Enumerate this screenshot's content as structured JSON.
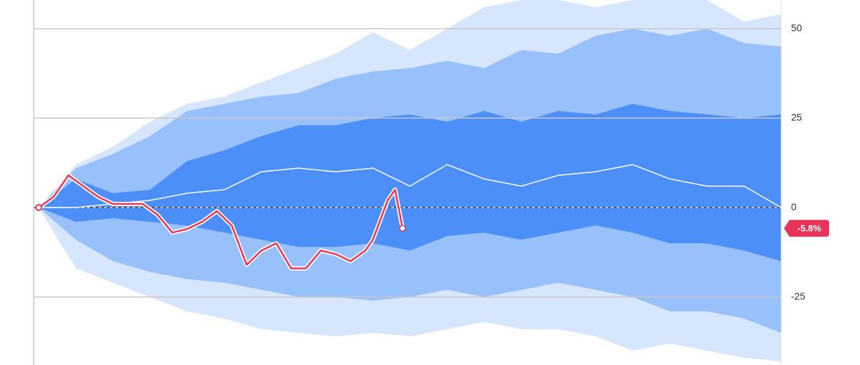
{
  "chart_data": {
    "type": "fan",
    "x": [
      0,
      10,
      20,
      30,
      40,
      50,
      60,
      70,
      80,
      90,
      100,
      110,
      120,
      130,
      140,
      150,
      160,
      170,
      180,
      190,
      200
    ],
    "xlim": [
      0,
      200
    ],
    "ylim": [
      -44,
      58
    ],
    "yticks": [
      -25,
      0,
      25,
      50
    ],
    "grid": true,
    "zero_line": true,
    "bands": [
      {
        "color": "#d6e6fd",
        "upper": [
          0,
          12,
          17,
          24,
          29,
          31,
          35,
          39,
          43,
          49,
          44,
          50,
          56,
          58,
          58,
          56,
          58,
          58,
          58,
          52,
          54
        ],
        "lower": [
          0,
          -17,
          -21,
          -25,
          -29,
          -31,
          -34,
          -35,
          -36,
          -35,
          -36,
          -34,
          -32,
          -34,
          -34,
          -36,
          -40,
          -38,
          -40,
          -42,
          -43
        ]
      },
      {
        "color": "#98c0fb",
        "upper": [
          0,
          11,
          15,
          20,
          27,
          29,
          31,
          32,
          36,
          38,
          39,
          41,
          39,
          44,
          43,
          48,
          50,
          48,
          50,
          46,
          45
        ],
        "lower": [
          0,
          -9,
          -15,
          -18,
          -20,
          -21,
          -23,
          -25,
          -25,
          -26,
          -25,
          -23,
          -25,
          -23,
          -21,
          -23,
          -25,
          -29,
          -29,
          -31,
          -35
        ]
      },
      {
        "color": "#4d8ff8",
        "upper": [
          0,
          8,
          4,
          5,
          13,
          16,
          20,
          23,
          23,
          25,
          26,
          24,
          27,
          24,
          27,
          26,
          29,
          27,
          26,
          25,
          26
        ],
        "lower": [
          0,
          -4,
          -3,
          -4,
          -5,
          -7,
          -9,
          -11,
          -11,
          -10,
          -12,
          -8,
          -7,
          -9,
          -7,
          -5,
          -7,
          -10,
          -10,
          -12,
          -15
        ]
      }
    ],
    "series": [
      {
        "color": "#ffffff",
        "values": [
          0,
          0,
          1,
          2,
          4,
          5,
          10,
          11,
          10,
          11,
          6,
          12,
          8,
          6,
          9,
          10,
          12,
          8,
          6,
          6,
          0
        ]
      },
      {
        "color": "#e8345a",
        "x": [
          0,
          4,
          8,
          12,
          16,
          20,
          24,
          28,
          32,
          36,
          40,
          44,
          48,
          52,
          56,
          60,
          64,
          68,
          72,
          76,
          80,
          84,
          88,
          90,
          94,
          96,
          98
        ],
        "values": [
          0,
          3,
          9,
          6,
          3,
          1,
          1,
          1,
          -2,
          -7,
          -6,
          -4,
          -1,
          -5,
          -16,
          -12,
          -10,
          -17,
          -17,
          -12,
          -13,
          -15,
          -12,
          -9,
          2,
          5,
          -5.8
        ],
        "value_labels": [
          null,
          null,
          null,
          null,
          null,
          null,
          null,
          null,
          null,
          null,
          null,
          null,
          null,
          null,
          null,
          null,
          null,
          null,
          null,
          null,
          null,
          null,
          null,
          null,
          null,
          null,
          "-5.8%"
        ]
      }
    ]
  }
}
